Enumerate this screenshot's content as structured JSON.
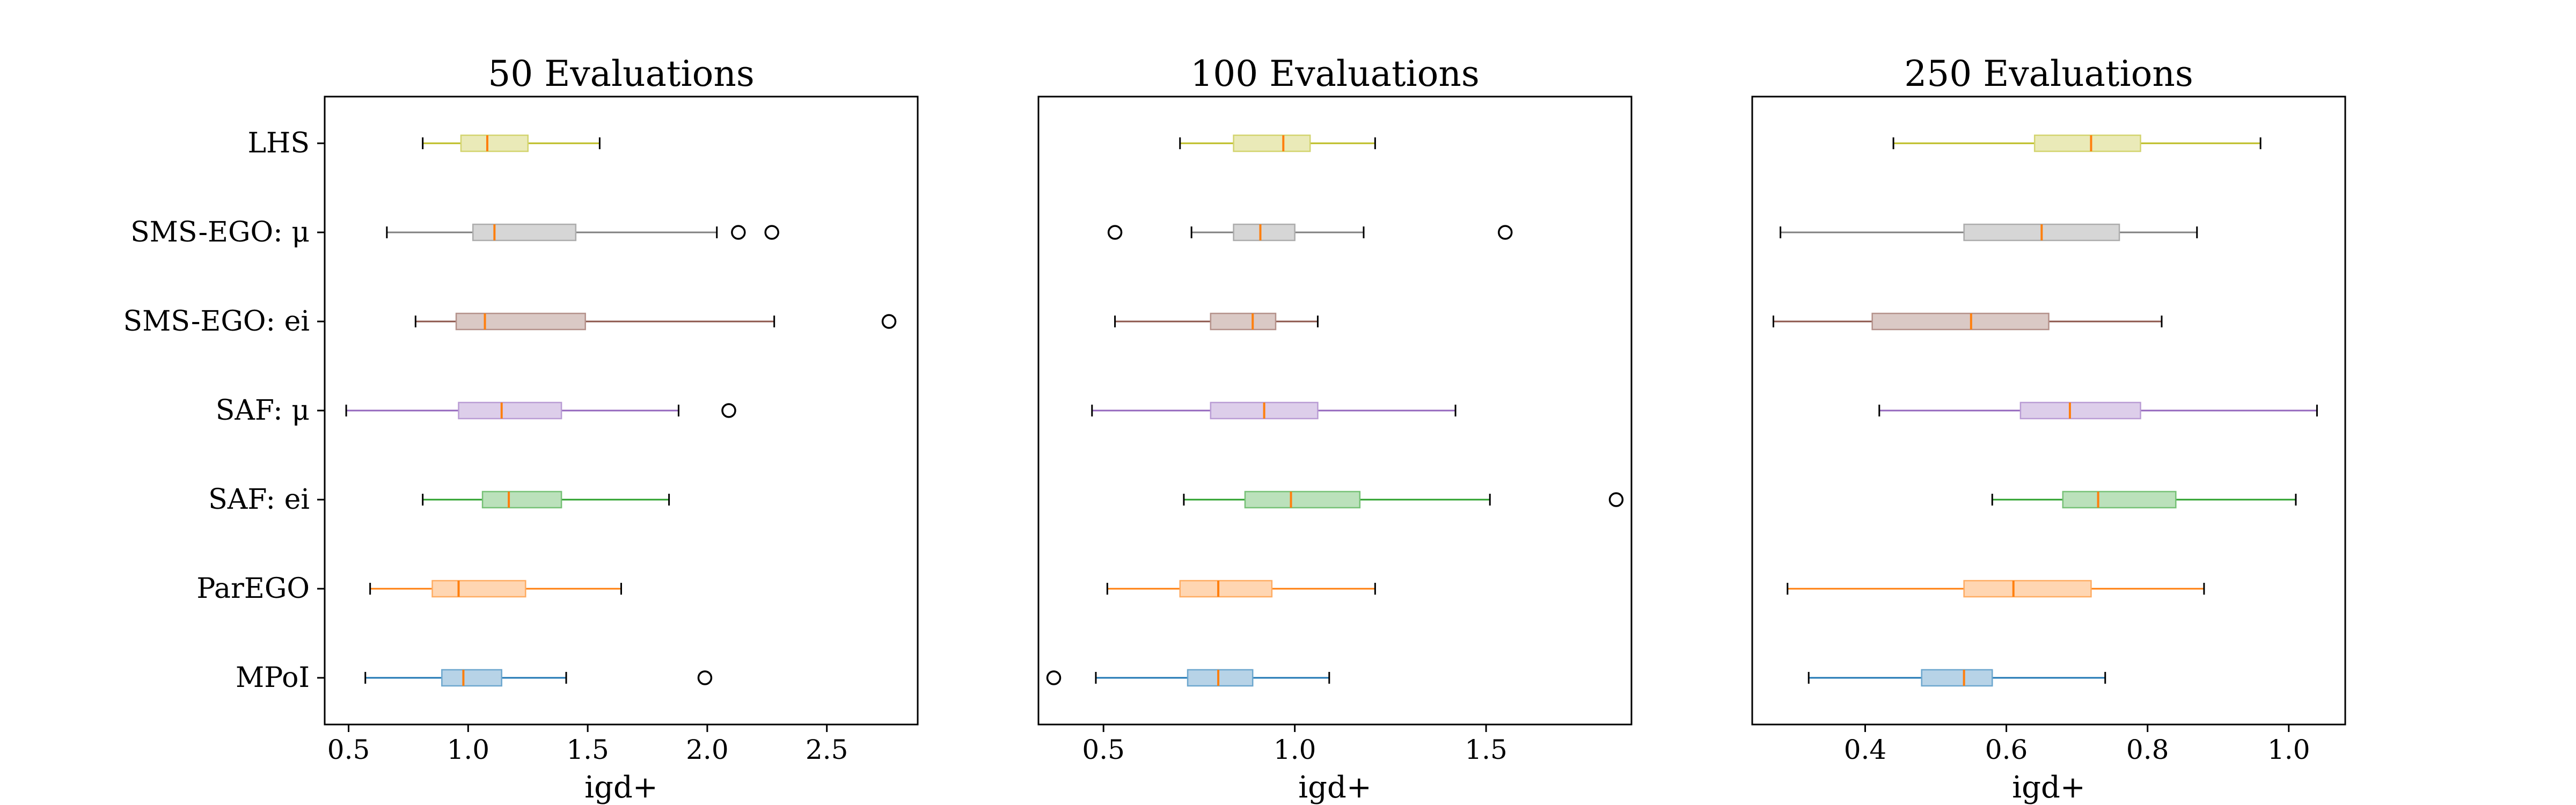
{
  "chart_data": [
    {
      "type": "boxplot",
      "title": "50 Evaluations",
      "xlabel": "igd+",
      "xlim": [
        0.4,
        2.88
      ],
      "xticks": [
        "0.5",
        "1.0",
        "1.5",
        "2.0",
        "2.5"
      ],
      "tick_values": [
        0.5,
        1.0,
        1.5,
        2.0,
        2.5
      ],
      "categories": [
        "LHS",
        "SMS-EGO: μ",
        "SMS-EGO: ei",
        "SAF: μ",
        "SAF: ei",
        "ParEGO",
        "MPoI"
      ],
      "boxes": [
        {
          "category": "LHS",
          "whislo": 0.81,
          "q1": 0.97,
          "med": 1.08,
          "q3": 1.25,
          "whishi": 1.55,
          "fliers": []
        },
        {
          "category": "SMS-EGO: μ",
          "whislo": 0.66,
          "q1": 1.02,
          "med": 1.11,
          "q3": 1.45,
          "whishi": 2.04,
          "fliers": [
            2.13,
            2.27
          ]
        },
        {
          "category": "SMS-EGO: ei",
          "whislo": 0.78,
          "q1": 0.95,
          "med": 1.07,
          "q3": 1.49,
          "whishi": 2.28,
          "fliers": [
            2.76
          ]
        },
        {
          "category": "SAF: μ",
          "whislo": 0.49,
          "q1": 0.96,
          "med": 1.14,
          "q3": 1.39,
          "whishi": 1.88,
          "fliers": [
            2.09
          ]
        },
        {
          "category": "SAF: ei",
          "whislo": 0.81,
          "q1": 1.06,
          "med": 1.17,
          "q3": 1.39,
          "whishi": 1.84,
          "fliers": []
        },
        {
          "category": "ParEGO",
          "whislo": 0.59,
          "q1": 0.85,
          "med": 0.96,
          "q3": 1.24,
          "whishi": 1.64,
          "fliers": []
        },
        {
          "category": "MPoI",
          "whislo": 0.57,
          "q1": 0.89,
          "med": 0.98,
          "q3": 1.14,
          "whishi": 1.41,
          "fliers": [
            1.99
          ]
        }
      ]
    },
    {
      "type": "boxplot",
      "title": "100 Evaluations",
      "xlabel": "igd+",
      "xlim": [
        0.33,
        1.88
      ],
      "xticks": [
        "0.5",
        "1.0",
        "1.5"
      ],
      "tick_values": [
        0.5,
        1.0,
        1.5
      ],
      "categories": [
        "LHS",
        "SMS-EGO: μ",
        "SMS-EGO: ei",
        "SAF: μ",
        "SAF: ei",
        "ParEGO",
        "MPoI"
      ],
      "boxes": [
        {
          "category": "LHS",
          "whislo": 0.7,
          "q1": 0.84,
          "med": 0.97,
          "q3": 1.04,
          "whishi": 1.21,
          "fliers": []
        },
        {
          "category": "SMS-EGO: μ",
          "whislo": 0.73,
          "q1": 0.84,
          "med": 0.91,
          "q3": 1.0,
          "whishi": 1.18,
          "fliers": [
            0.53,
            1.55
          ]
        },
        {
          "category": "SMS-EGO: ei",
          "whislo": 0.53,
          "q1": 0.78,
          "med": 0.89,
          "q3": 0.95,
          "whishi": 1.06,
          "fliers": []
        },
        {
          "category": "SAF: μ",
          "whislo": 0.47,
          "q1": 0.78,
          "med": 0.92,
          "q3": 1.06,
          "whishi": 1.42,
          "fliers": []
        },
        {
          "category": "SAF: ei",
          "whislo": 0.71,
          "q1": 0.87,
          "med": 0.99,
          "q3": 1.17,
          "whishi": 1.51,
          "fliers": [
            1.84
          ]
        },
        {
          "category": "ParEGO",
          "whislo": 0.51,
          "q1": 0.7,
          "med": 0.8,
          "q3": 0.94,
          "whishi": 1.21,
          "fliers": []
        },
        {
          "category": "MPoI",
          "whislo": 0.48,
          "q1": 0.72,
          "med": 0.8,
          "q3": 0.89,
          "whishi": 1.09,
          "fliers": [
            0.37
          ]
        }
      ]
    },
    {
      "type": "boxplot",
      "title": "250 Evaluations",
      "xlabel": "igd+",
      "xlim": [
        0.24,
        1.08
      ],
      "xticks": [
        "0.4",
        "0.6",
        "0.8",
        "1.0"
      ],
      "tick_values": [
        0.4,
        0.6,
        0.8,
        1.0
      ],
      "categories": [
        "LHS",
        "SMS-EGO: μ",
        "SMS-EGO: ei",
        "SAF: μ",
        "SAF: ei",
        "ParEGO",
        "MPoI"
      ],
      "boxes": [
        {
          "category": "LHS",
          "whislo": 0.44,
          "q1": 0.64,
          "med": 0.72,
          "q3": 0.79,
          "whishi": 0.96,
          "fliers": []
        },
        {
          "category": "SMS-EGO: μ",
          "whislo": 0.28,
          "q1": 0.54,
          "med": 0.65,
          "q3": 0.76,
          "whishi": 0.87,
          "fliers": []
        },
        {
          "category": "SMS-EGO: ei",
          "whislo": 0.27,
          "q1": 0.41,
          "med": 0.55,
          "q3": 0.66,
          "whishi": 0.82,
          "fliers": []
        },
        {
          "category": "SAF: μ",
          "whislo": 0.42,
          "q1": 0.62,
          "med": 0.69,
          "q3": 0.79,
          "whishi": 1.04,
          "fliers": []
        },
        {
          "category": "SAF: ei",
          "whislo": 0.58,
          "q1": 0.68,
          "med": 0.73,
          "q3": 0.84,
          "whishi": 1.01,
          "fliers": []
        },
        {
          "category": "ParEGO",
          "whislo": 0.29,
          "q1": 0.54,
          "med": 0.61,
          "q3": 0.72,
          "whishi": 0.88,
          "fliers": []
        },
        {
          "category": "MPoI",
          "whislo": 0.32,
          "q1": 0.48,
          "med": 0.54,
          "q3": 0.58,
          "whishi": 0.74,
          "fliers": []
        }
      ]
    }
  ],
  "series_colors": [
    "#bcbd22",
    "#7f7f7f",
    "#8c564b",
    "#9467bd",
    "#2ca02c",
    "#ff7f0e",
    "#1f77b4"
  ],
  "median_color": "#ff7f0e",
  "flier_style": "open-circle"
}
